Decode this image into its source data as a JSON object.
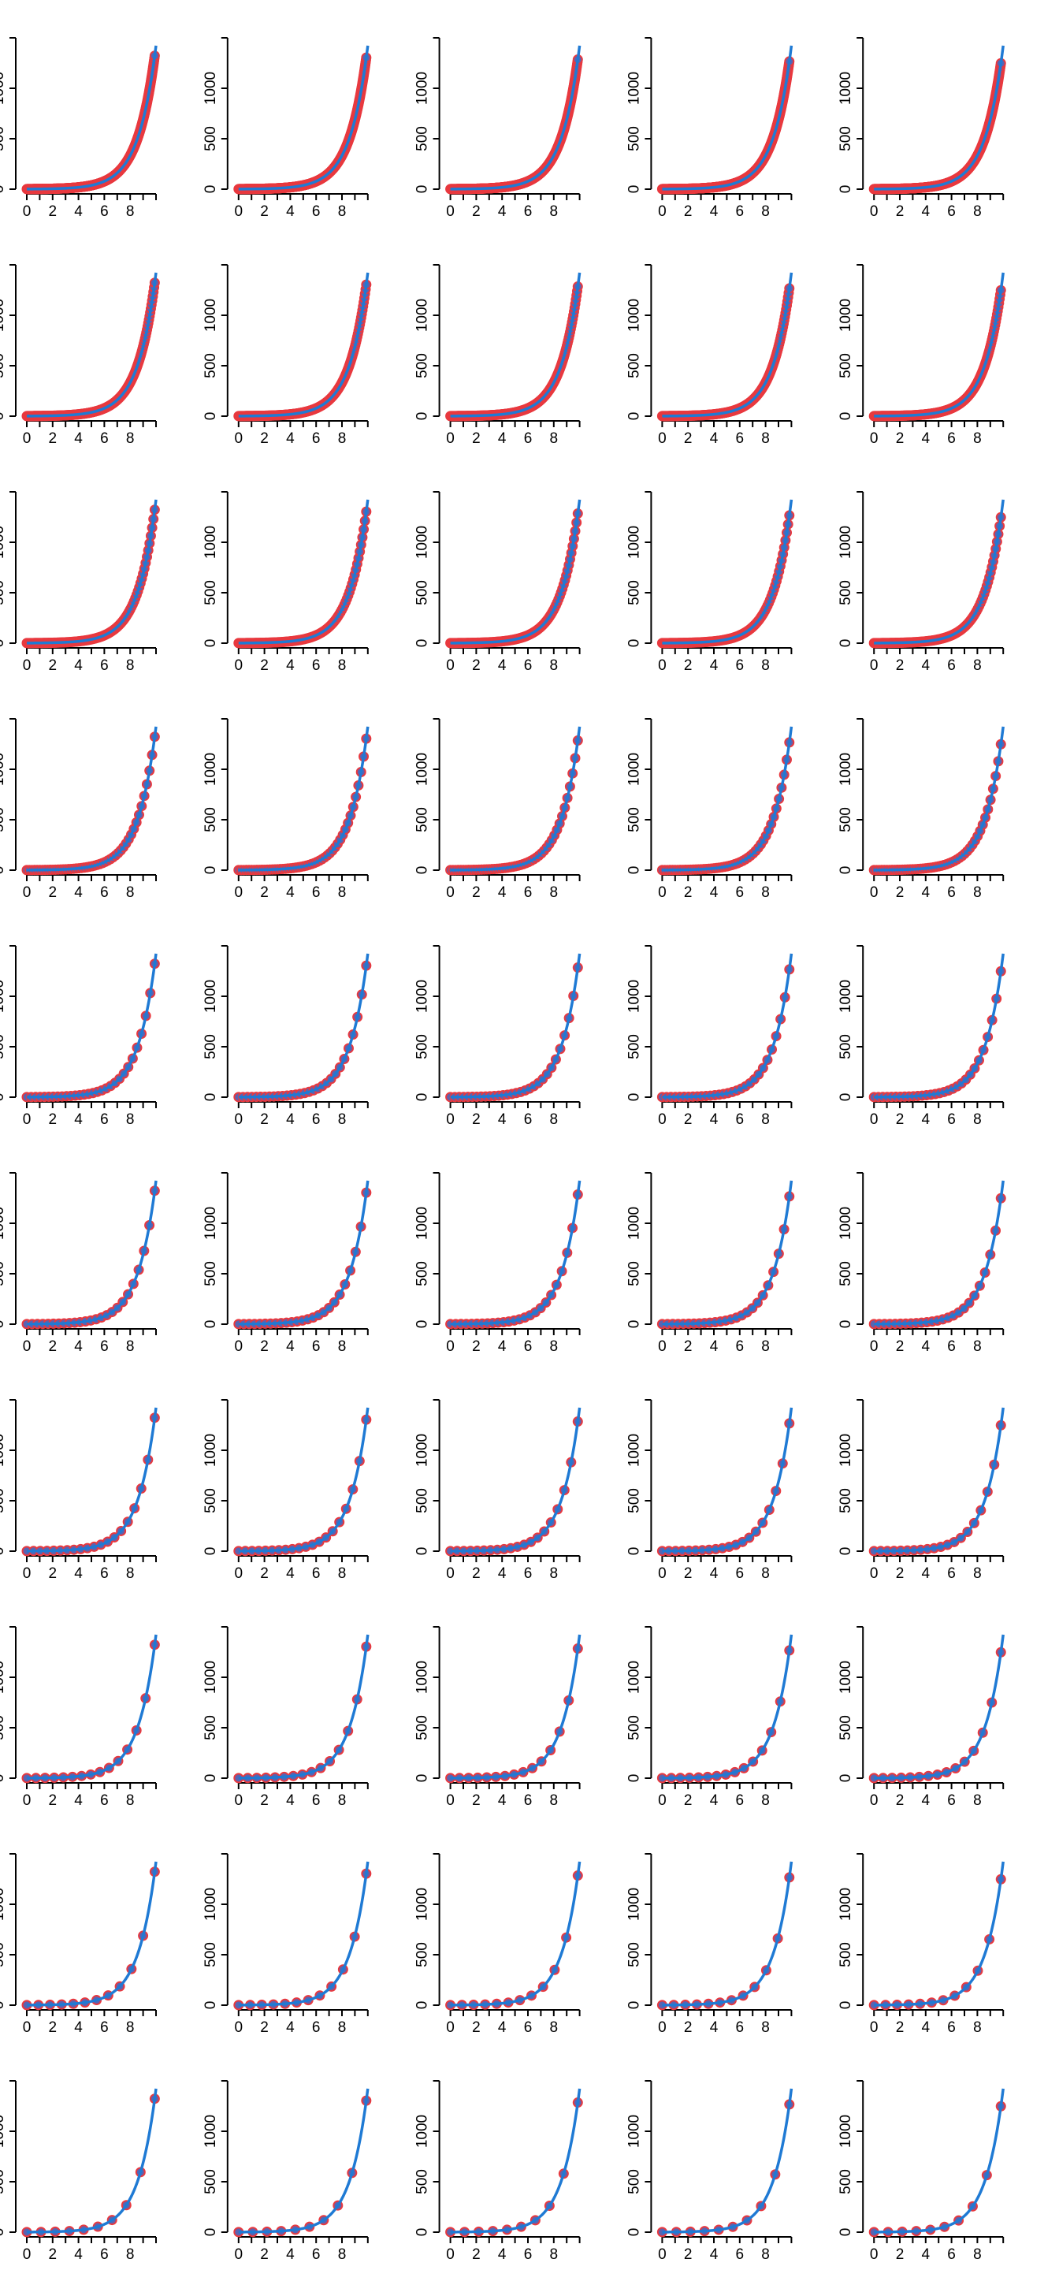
{
  "figure": {
    "layout": {
      "rows": 10,
      "cols": 5
    },
    "colors": {
      "curve": "#1f7ad4",
      "marker_fill": "#5b63b0",
      "marker_edge": "#e8393f",
      "axis": "#000000",
      "background": "#ffffff"
    },
    "function": "2^x + ... (exponential, reaches ~1400 at x = 10)",
    "xlim": [
      0,
      10
    ],
    "ylim": [
      0,
      1500
    ],
    "x_ticks": [
      "0",
      "2",
      "4",
      "6",
      "8"
    ],
    "y_ticks": [
      "0",
      "500",
      "1000"
    ],
    "point_counts_by_row": [
      400,
      200,
      100,
      50,
      30,
      25,
      20,
      15,
      12,
      10
    ]
  },
  "chart_data": {
    "type": "line",
    "description_of_panels": "50 small-multiple panels; each shows the same exponential curve y = exp(0.726*x) (≈1420 at x=10) as a blue line with red-edged circular markers; marker density decreases row by row",
    "x_range": [
      0,
      10
    ],
    "y_range": [
      0,
      1500
    ],
    "series": [
      {
        "name": "",
        "x": [
          0,
          1,
          2,
          3,
          4,
          5,
          6,
          7,
          8,
          9,
          10
        ],
        "y": [
          1,
          2.1,
          4.3,
          8.8,
          18.2,
          37.7,
          77.9,
          161,
          333,
          688,
          1420
        ]
      }
    ]
  }
}
